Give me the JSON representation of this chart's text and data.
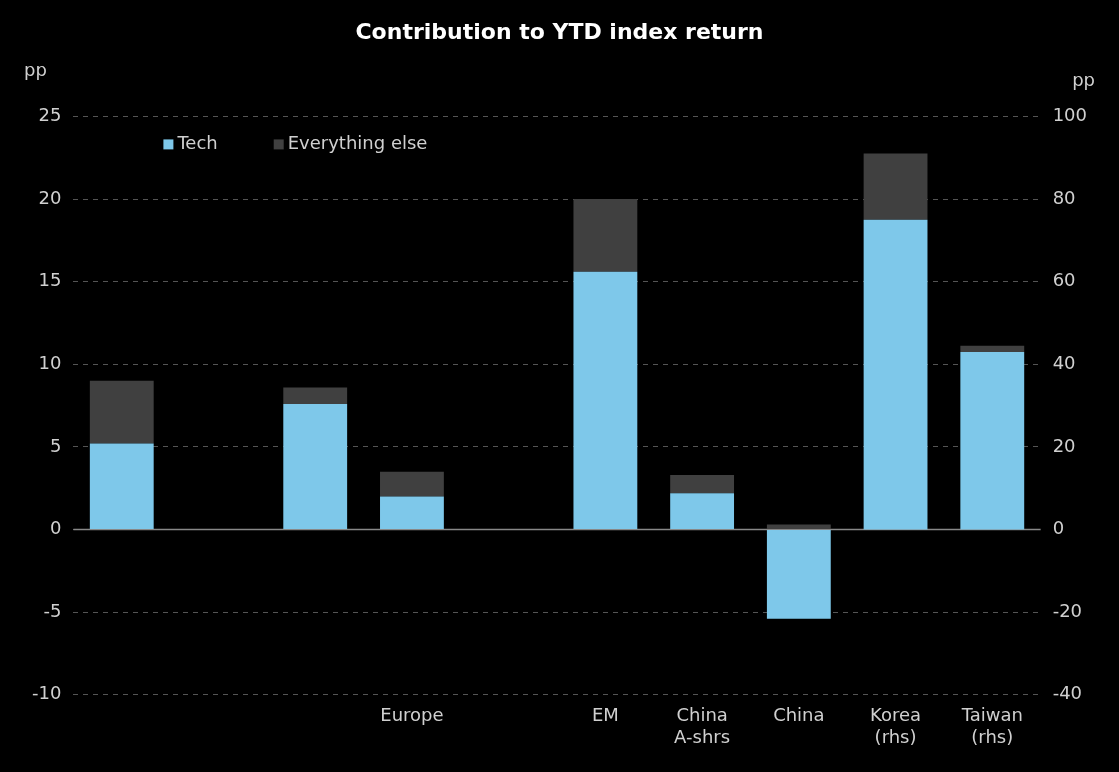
{
  "chart_data": {
    "type": "bar",
    "title": "Contribution to YTD index return",
    "ylabel": "pp",
    "y2label": "pp",
    "categories": [
      null,
      null,
      null,
      "Europe",
      null,
      "EM",
      "China A-shrs",
      "China",
      "Korea (rhs)",
      "Taiwan (rhs)"
    ],
    "series": [
      {
        "name": "Tech",
        "color": "#7ec8ea",
        "values": [
          5.2,
          null,
          7.6,
          2.0,
          null,
          15.6,
          2.2,
          -5.4,
          null,
          null
        ]
      },
      {
        "name": "Everything else",
        "color": "#404040",
        "values": [
          3.8,
          null,
          1.0,
          1.5,
          null,
          4.4,
          1.1,
          0.3,
          null,
          null
        ]
      },
      {
        "color": "#7ec8ea",
        "axis": "y2",
        "values": [
          null,
          null,
          null,
          null,
          null,
          null,
          null,
          null,
          75,
          43
        ]
      },
      {
        "color": "#404040",
        "axis": "y2",
        "values": [
          null,
          null,
          null,
          null,
          null,
          null,
          null,
          null,
          16,
          1.5
        ]
      }
    ],
    "stacked": true,
    "ylim": [
      -10,
      25
    ],
    "yticks": [
      -10,
      -5,
      0,
      5,
      10,
      15,
      20,
      25
    ],
    "y2lim": [
      -40,
      100
    ],
    "y2ticks": [
      -40,
      -20,
      0,
      20,
      40,
      60,
      80,
      100
    ],
    "grid": "y",
    "legend": "top left"
  }
}
